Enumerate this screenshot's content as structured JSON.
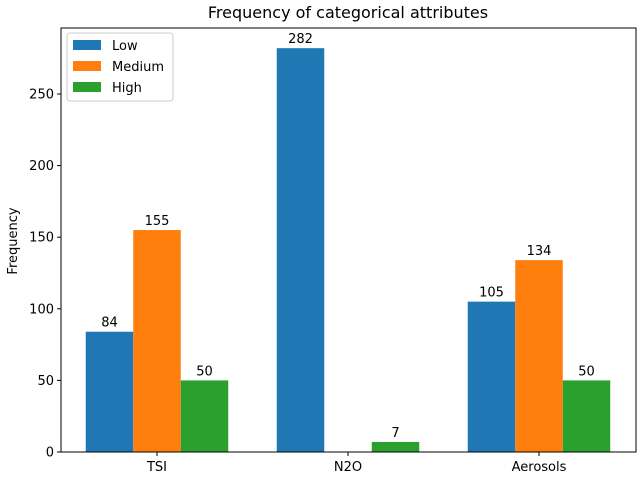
{
  "chart_data": {
    "type": "bar",
    "title": "Frequency of categorical attributes",
    "xlabel": "",
    "ylabel": "Frequency",
    "categories": [
      "TSI",
      "N2O",
      "Aerosols"
    ],
    "series": [
      {
        "name": "Low",
        "color": "#1f77b4",
        "values": [
          84,
          282,
          105
        ]
      },
      {
        "name": "Medium",
        "color": "#ff7f0e",
        "values": [
          155,
          0,
          134
        ]
      },
      {
        "name": "High",
        "color": "#2ca02c",
        "values": [
          50,
          7,
          50
        ]
      }
    ],
    "data_labels": [
      [
        "84",
        "282",
        "105"
      ],
      [
        "155",
        "",
        "134"
      ],
      [
        "50",
        "7",
        "50"
      ]
    ],
    "yticks": [
      0,
      50,
      100,
      150,
      200,
      250
    ],
    "ylim": [
      0,
      296.1
    ],
    "grid": false,
    "legend_position": "top-left"
  }
}
